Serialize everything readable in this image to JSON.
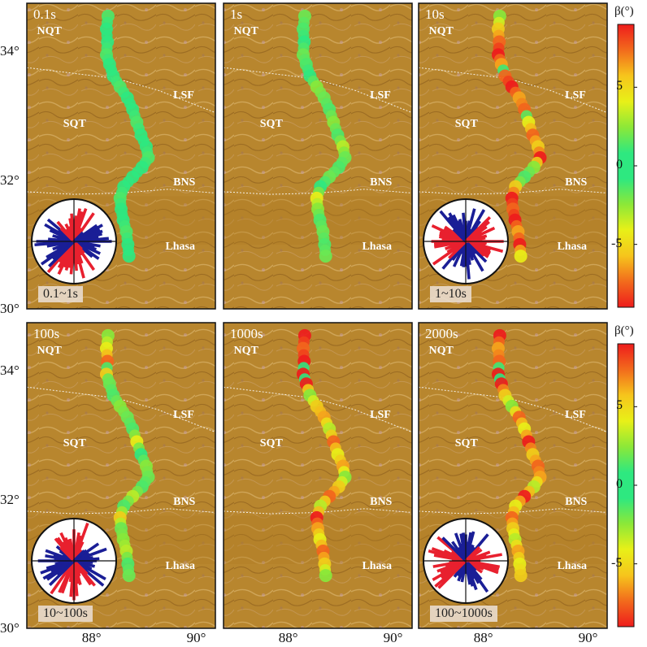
{
  "colors": {
    "terrain": "#b8862e",
    "terrain_dark": "#8f6520",
    "terrain_light": "#d4a85a",
    "colormap": [
      "#ee1c1c",
      "#f26b1c",
      "#f6c51c",
      "#e8f018",
      "#8ce838",
      "#2ee880",
      "#2ee880",
      "#8ce838",
      "#e8f018",
      "#f6c51c",
      "#f26b1c",
      "#ee1c1c"
    ],
    "rose_red": "#e8202e",
    "rose_blue": "#1a1e96"
  },
  "chart_data": {
    "type": "scatter",
    "xaxis": {
      "ticks": [
        "88°",
        "90°"
      ],
      "range": [
        86.7,
        90.3
      ]
    },
    "yaxis": {
      "ticks": [
        "30°",
        "32°",
        "34°"
      ],
      "range": [
        30.0,
        34.75
      ]
    },
    "region_labels": [
      "NQT",
      "LSF",
      "SQT",
      "BNS",
      "Lhasa"
    ],
    "colorbar": {
      "title": "β(°)",
      "ticks": [
        "5",
        "0",
        "-5"
      ],
      "range": [
        -9,
        9
      ]
    },
    "profile": [
      [
        88.25,
        34.55
      ],
      [
        88.22,
        34.35
      ],
      [
        88.24,
        34.15
      ],
      [
        88.22,
        33.95
      ],
      [
        88.28,
        33.8
      ],
      [
        88.35,
        33.62
      ],
      [
        88.48,
        33.45
      ],
      [
        88.62,
        33.28
      ],
      [
        88.72,
        33.1
      ],
      [
        88.8,
        32.9
      ],
      [
        88.88,
        32.7
      ],
      [
        88.98,
        32.52
      ],
      [
        89.02,
        32.35
      ],
      [
        88.9,
        32.2
      ],
      [
        88.72,
        32.05
      ],
      [
        88.55,
        31.9
      ],
      [
        88.48,
        31.72
      ],
      [
        88.5,
        31.55
      ],
      [
        88.54,
        31.38
      ],
      [
        88.6,
        31.2
      ],
      [
        88.63,
        31.0
      ],
      [
        88.65,
        30.82
      ]
    ],
    "panels": [
      {
        "title": "0.1s",
        "range_label": "0.1~1s",
        "rose": true,
        "values": [
          -1,
          0,
          0,
          1,
          0,
          0,
          -1,
          0,
          0,
          1,
          0,
          0,
          1,
          0,
          0,
          0,
          -1,
          0,
          0,
          1,
          0,
          0
        ]
      },
      {
        "title": "1s",
        "range_label": "",
        "rose": false,
        "values": [
          2,
          1,
          0,
          2,
          1,
          0,
          3,
          2,
          1,
          3,
          1,
          4,
          2,
          1,
          2,
          0,
          5,
          3,
          1,
          2,
          1,
          2
        ]
      },
      {
        "title": "10s",
        "range_label": "1~10s",
        "rose": true,
        "values": [
          3,
          6,
          8,
          9,
          7,
          -8,
          -9,
          -7,
          -8,
          5,
          8,
          6,
          9,
          3,
          1,
          -6,
          -9,
          -8,
          -9,
          -7,
          -9,
          -5
        ]
      },
      {
        "title": "100s",
        "range_label": "10~100s",
        "rose": true,
        "values": [
          3,
          5,
          8,
          -6,
          2,
          1,
          3,
          2,
          1,
          5,
          0,
          3,
          2,
          1,
          4,
          1,
          6,
          2,
          3,
          4,
          1,
          2
        ]
      },
      {
        "title": "1000s",
        "range_label": "",
        "rose": false,
        "values": [
          9,
          8,
          9,
          -9,
          9,
          3,
          6,
          7,
          4,
          8,
          5,
          7,
          3,
          6,
          8,
          4,
          9,
          7,
          5,
          8,
          6,
          3
        ]
      },
      {
        "title": "2000s",
        "range_label": "100~1000s",
        "rose": true,
        "values": [
          9,
          7,
          8,
          -9,
          9,
          6,
          3,
          8,
          5,
          9,
          6,
          8,
          7,
          4,
          9,
          5,
          8,
          6,
          4,
          7,
          5,
          6
        ]
      }
    ]
  }
}
